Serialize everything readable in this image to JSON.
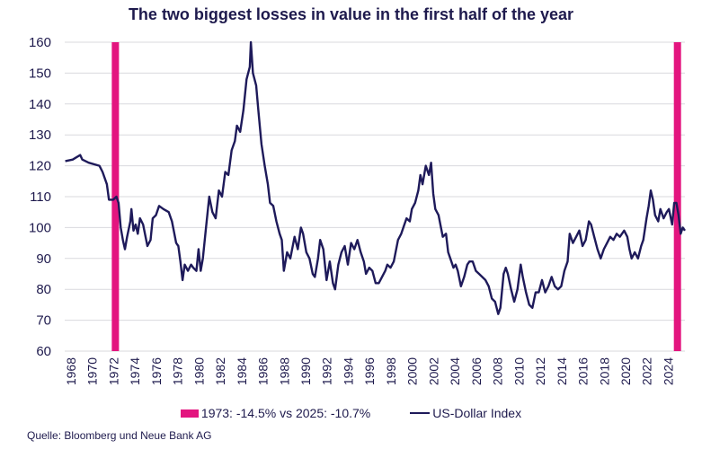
{
  "chart_data": {
    "type": "line",
    "title": "The two biggest losses in value in the first half of the year",
    "xlabel": "",
    "ylabel": "",
    "ylim": [
      60,
      160
    ],
    "xlim": [
      1967.75,
      2025.9
    ],
    "yticks": [
      60,
      70,
      80,
      90,
      100,
      110,
      120,
      130,
      140,
      150,
      160
    ],
    "xticks": [
      "1968",
      "1970",
      "1972",
      "1974",
      "1976",
      "1978",
      "1980",
      "1982",
      "1984",
      "1986",
      "1988",
      "1990",
      "1992",
      "1994",
      "1996",
      "1998",
      "2000",
      "2002",
      "2004",
      "2006",
      "2008",
      "2010",
      "2012",
      "2014",
      "2016",
      "2018",
      "2020",
      "2022",
      "2024"
    ],
    "grid": "horizontal",
    "legend": "bottom-center",
    "series": [
      {
        "name": "US-Dollar Index",
        "kind": "line",
        "color": "#1e1a5a",
        "x": [
          1967.8,
          1968.5,
          1969.2,
          1969.4,
          1970,
          1971,
          1971.3,
          1971.7,
          1971.9,
          1972.3,
          1972.6,
          1972.8,
          1973.0,
          1973.2,
          1973.4,
          1973.6,
          1973.9,
          1974.0,
          1974.2,
          1974.4,
          1974.6,
          1974.8,
          1975.1,
          1975.5,
          1975.8,
          1976.0,
          1976.3,
          1976.6,
          1977,
          1977.5,
          1977.8,
          1978.2,
          1978.4,
          1978.6,
          1978.8,
          1979,
          1979.3,
          1979.6,
          1979.8,
          1980.1,
          1980.3,
          1980.5,
          1980.7,
          1981,
          1981.3,
          1981.6,
          1981.9,
          1982.2,
          1982.5,
          1982.8,
          1983.1,
          1983.4,
          1983.7,
          1983.9,
          1984.2,
          1984.5,
          1984.8,
          1985.1,
          1985.2,
          1985.4,
          1985.7,
          1985.9,
          1986.2,
          1986.5,
          1986.8,
          1987.0,
          1987.3,
          1987.6,
          1987.9,
          1988.1,
          1988.3,
          1988.6,
          1988.9,
          1989.3,
          1989.6,
          1989.9,
          1990.1,
          1990.4,
          1990.7,
          1991,
          1991.2,
          1991.5,
          1991.7,
          1992,
          1992.3,
          1992.6,
          1992.9,
          1993.1,
          1993.4,
          1993.7,
          1994,
          1994.3,
          1994.6,
          1994.9,
          1995.2,
          1995.5,
          1995.8,
          1996,
          1996.3,
          1996.6,
          1996.9,
          1997.2,
          1997.5,
          1997.8,
          1998.0,
          1998.3,
          1998.6,
          1999,
          1999.3,
          1999.6,
          1999.8,
          2000.1,
          2000.3,
          2000.6,
          2000.9,
          2001.1,
          2001.3,
          2001.6,
          2001.9,
          2002.1,
          2002.3,
          2002.5,
          2002.8,
          2003.2,
          2003.5,
          2003.7,
          2003.9,
          2004.2,
          2004.4,
          2004.6,
          2004.9,
          2005.2,
          2005.5,
          2005.7,
          2006,
          2006.3,
          2006.6,
          2006.9,
          2007.2,
          2007.5,
          2007.8,
          2008.1,
          2008.4,
          2008.6,
          2008.9,
          2009.1,
          2009.3,
          2009.6,
          2009.9,
          2010.2,
          2010.5,
          2010.7,
          2011.0,
          2011.3,
          2011.6,
          2011.9,
          2012.2,
          2012.5,
          2012.8,
          2013.1,
          2013.4,
          2013.7,
          2014,
          2014.3,
          2014.6,
          2014.9,
          2015.1,
          2015.4,
          2015.7,
          2016.0,
          2016.3,
          2016.6,
          2016.9,
          2017.1,
          2017.4,
          2017.7,
          2018.0,
          2018.3,
          2018.6,
          2018.9,
          2019.2,
          2019.5,
          2019.8,
          2020.2,
          2020.5,
          2020.7,
          2020.9,
          2021.2,
          2021.5,
          2021.8,
          2022.0,
          2022.3,
          2022.5,
          2022.7,
          2022.9,
          2023.1,
          2023.4,
          2023.6,
          2023.9,
          2024.2,
          2024.4,
          2024.7,
          2024.9,
          2025.1,
          2025.3,
          2025.5,
          2025.7,
          2025.9
        ],
        "values": [
          121.5,
          122,
          123.5,
          122,
          121,
          120,
          118,
          114,
          109,
          109,
          110,
          108,
          100,
          96,
          93,
          97,
          102,
          106,
          99,
          101,
          98,
          103,
          101,
          94,
          96,
          103,
          104,
          107,
          106,
          105,
          102,
          95,
          94,
          89,
          83,
          88,
          86,
          88,
          87,
          86,
          93,
          86,
          90,
          100,
          110,
          105,
          103,
          112,
          110,
          118,
          117,
          125,
          128,
          133,
          131,
          138,
          148,
          152,
          160,
          150,
          146,
          138,
          127,
          120,
          114,
          108,
          107,
          102,
          98,
          96,
          86,
          92,
          90,
          97,
          93,
          100,
          98,
          92,
          90,
          85,
          84,
          90,
          96,
          93,
          83,
          89,
          82,
          80,
          88,
          92,
          94,
          88,
          95,
          93,
          96,
          92,
          89,
          85,
          87,
          86,
          82,
          82,
          84,
          86,
          88,
          87,
          89,
          96,
          98,
          101,
          103,
          102,
          106,
          108,
          112,
          117,
          114,
          120,
          117,
          121,
          111,
          106,
          104,
          97,
          98,
          92,
          90,
          87,
          88,
          86,
          81,
          84,
          88,
          89,
          89,
          86,
          85,
          84,
          83,
          81,
          77,
          76,
          72,
          74,
          85,
          87,
          85,
          80,
          76,
          80,
          88,
          84,
          79,
          75,
          74,
          79,
          79,
          83,
          79,
          81,
          84,
          81,
          80,
          81,
          86,
          89,
          98,
          95,
          97,
          99,
          94,
          96,
          102,
          101,
          97,
          93,
          90,
          93,
          95,
          97,
          96,
          98,
          97,
          99,
          97,
          93,
          90,
          92,
          90,
          94,
          96,
          103,
          107,
          112,
          109,
          104,
          102,
          106,
          103,
          105,
          106,
          101,
          108,
          108,
          104,
          98,
          100,
          99
        ]
      },
      {
        "name": "1973: -14.5% vs 2025: -10.7%",
        "kind": "vertical-bar-markers",
        "color": "#e3157f",
        "x": [
          1972.5,
          2025.2
        ]
      }
    ]
  },
  "legend": {
    "bar_label": "1973: -14.5% vs 2025: -10.7%",
    "line_label": "US-Dollar Index"
  },
  "source": "Quelle: Bloomberg und Neue Bank AG"
}
